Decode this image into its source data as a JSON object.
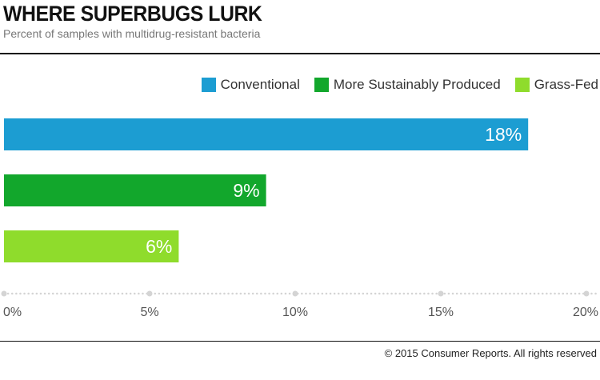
{
  "header": {
    "title": "WHERE SUPERBUGS LURK",
    "subtitle": "Percent of samples with multidrug-resistant bacteria"
  },
  "footer": {
    "credit": "© 2015 Consumer Reports. All rights reserved"
  },
  "chart_data": {
    "type": "bar",
    "orientation": "horizontal",
    "title": "WHERE SUPERBUGS LURK",
    "subtitle": "Percent of samples with multidrug-resistant bacteria",
    "categories": [
      "Conventional",
      "More Sustainably Produced",
      "Grass-Fed"
    ],
    "values": [
      18,
      9,
      6
    ],
    "data_labels": [
      "18%",
      "9%",
      "6%"
    ],
    "colors": [
      "#1c9dd2",
      "#12a72c",
      "#8fdc2c"
    ],
    "xlim": [
      0,
      20
    ],
    "x_ticks": [
      0,
      5,
      10,
      15,
      20
    ],
    "x_tick_labels": [
      "0%",
      "5%",
      "10%",
      "15%",
      "20%"
    ],
    "legend": {
      "position": "top-right",
      "entries": [
        "Conventional",
        "More Sustainably Produced",
        "Grass-Fed"
      ]
    },
    "grid": false
  }
}
